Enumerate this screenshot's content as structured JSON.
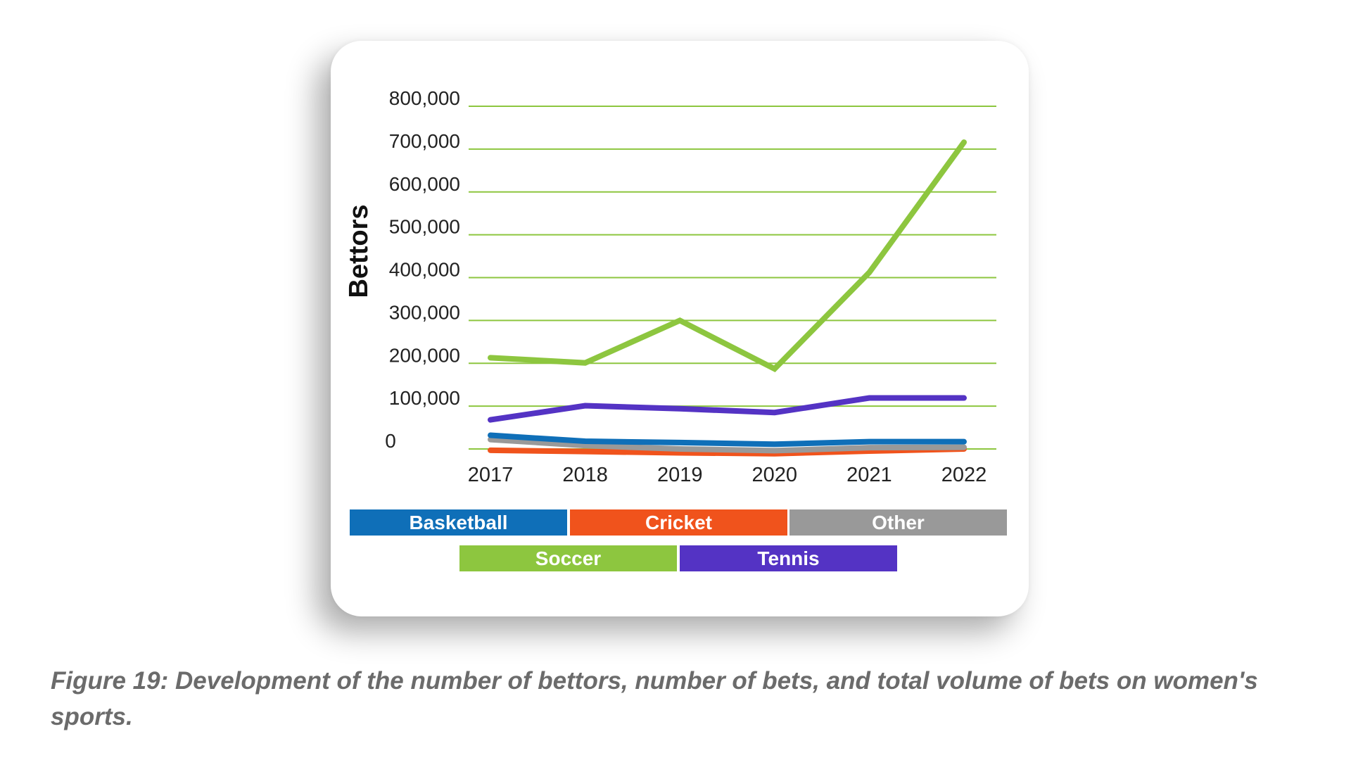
{
  "chart_data": {
    "type": "line",
    "title": "",
    "ylabel": "Bettors",
    "xlabel": "",
    "categories": [
      "2017",
      "2018",
      "2019",
      "2020",
      "2021",
      "2022"
    ],
    "ylim": [
      0,
      800000
    ],
    "yticks": [
      0,
      100000,
      200000,
      300000,
      400000,
      500000,
      600000,
      700000,
      800000
    ],
    "ytick_labels": [
      "0",
      "100,000",
      "200,000",
      "300,000",
      "400,000",
      "500,000",
      "600,000",
      "700,000",
      "800,000"
    ],
    "grid": true,
    "legend_position": "bottom",
    "series": [
      {
        "name": "Basketball",
        "color": "#0f6fb8",
        "values": [
          32000,
          18000,
          15000,
          11000,
          17000,
          17000
        ]
      },
      {
        "name": "Cricket",
        "color": "#f0531c",
        "values": [
          -3000,
          -6000,
          -9000,
          -11000,
          -5000,
          0
        ]
      },
      {
        "name": "Other",
        "color": "#999999",
        "values": [
          22000,
          8000,
          0,
          -4000,
          3000,
          4000
        ]
      },
      {
        "name": "Soccer",
        "color": "#8dc63f",
        "values": [
          213000,
          201000,
          300000,
          187000,
          412000,
          716000
        ]
      },
      {
        "name": "Tennis",
        "color": "#5433c4",
        "values": [
          68000,
          101000,
          94000,
          85000,
          119000,
          119000
        ]
      }
    ]
  },
  "caption": "Figure 19: Development of the number of bettors, number of bets, and total volume of bets on women's sports."
}
